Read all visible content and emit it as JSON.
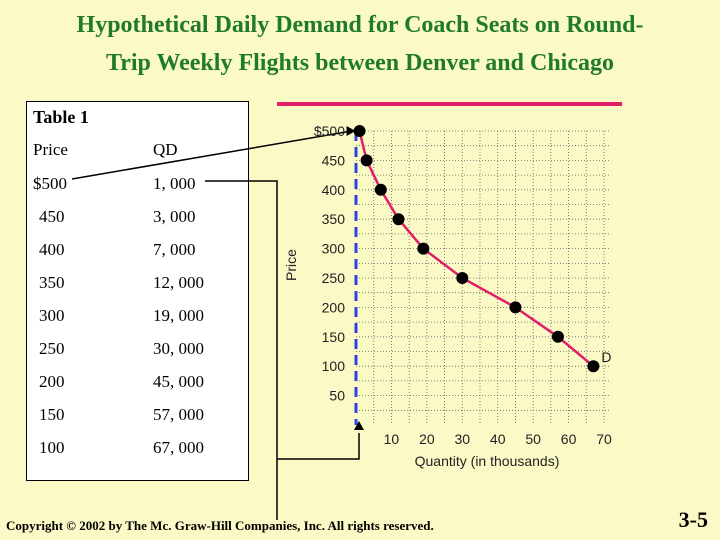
{
  "title": {
    "line1": "Hypothetical Daily Demand for Coach Seats on Round-",
    "line2": "Trip Weekly Flights between Denver and Chicago"
  },
  "table": {
    "title": "Table 1",
    "headers": [
      "Price",
      "QD"
    ],
    "rows": [
      [
        "$500",
        "1, 000"
      ],
      [
        "450",
        "3, 000"
      ],
      [
        "400",
        "7, 000"
      ],
      [
        "350",
        "12, 000"
      ],
      [
        "300",
        "19, 000"
      ],
      [
        "250",
        "30, 000"
      ],
      [
        "200",
        "45, 000"
      ],
      [
        "150",
        "57, 000"
      ],
      [
        "100",
        "67, 000"
      ]
    ]
  },
  "chart_data": {
    "type": "line",
    "ylabel": "Price",
    "xlabel": "Quantity (in thousands)",
    "x_ticks": [
      "10",
      "20",
      "30",
      "40",
      "50",
      "60",
      "70"
    ],
    "y_ticks": [
      "$500",
      "450",
      "400",
      "350",
      "300",
      "250",
      "200",
      "150",
      "100",
      "50"
    ],
    "xlim": [
      0,
      72
    ],
    "ylim": [
      0,
      500
    ],
    "grid": true,
    "series": [
      {
        "name": "D",
        "x": [
          1,
          3,
          7,
          12,
          19,
          30,
          45,
          57,
          67
        ],
        "y": [
          500,
          450,
          400,
          350,
          300,
          250,
          200,
          150,
          100
        ]
      }
    ],
    "colors": {
      "line": "#e01e6a",
      "points": "#000000",
      "grid": "#555555"
    }
  },
  "footer": {
    "copyright": "Copyright © 2002 by The Mc. Graw-Hill Companies, Inc. All rights reserved.",
    "page": "3-5"
  }
}
